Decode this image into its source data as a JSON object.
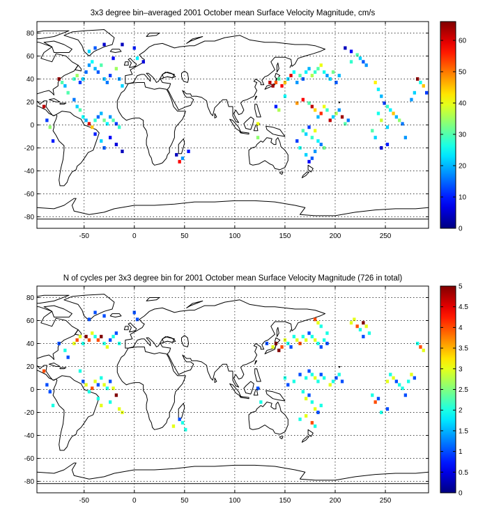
{
  "chart_data": [
    {
      "type": "heatmap",
      "title": "3x3 degree bin–averaged 2001 October mean Surface Velocity Magnitude, cm/s",
      "xlabel": "",
      "ylabel": "",
      "xlim": [
        -97,
        293
      ],
      "ylim": [
        -90,
        90
      ],
      "x_ticks": [
        -50,
        0,
        50,
        100,
        150,
        200,
        250
      ],
      "y_ticks": [
        -80,
        -60,
        -40,
        -20,
        0,
        20,
        40,
        60,
        80
      ],
      "grid": true,
      "colorbar": {
        "min": 0,
        "max": 66,
        "ticks": [
          0,
          10,
          20,
          30,
          40,
          50,
          60
        ],
        "tick_labels": [
          "0",
          "10",
          "20",
          "30",
          "40",
          "50",
          "60"
        ],
        "colormap": "jet"
      },
      "points": [
        [
          -75,
          40,
          65
        ],
        [
          -72,
          37,
          30
        ],
        [
          -69,
          34,
          20
        ],
        [
          -60,
          40,
          28
        ],
        [
          -57,
          43,
          35
        ],
        [
          -54,
          37,
          12
        ],
        [
          -51,
          40,
          22
        ],
        [
          -48,
          46,
          15
        ],
        [
          -45,
          52,
          18
        ],
        [
          -42,
          55,
          25
        ],
        [
          -39,
          49,
          20
        ],
        [
          -36,
          46,
          14
        ],
        [
          -33,
          52,
          30
        ],
        [
          -30,
          40,
          20
        ],
        [
          -27,
          37,
          16
        ],
        [
          -24,
          43,
          12
        ],
        [
          -21,
          58,
          8
        ],
        [
          -18,
          49,
          35
        ],
        [
          -15,
          40,
          18
        ],
        [
          -12,
          34,
          22
        ],
        [
          -45,
          64,
          22
        ],
        [
          -39,
          67,
          14
        ],
        [
          -30,
          70,
          5
        ],
        [
          -12,
          70,
          4
        ],
        [
          0,
          67,
          10
        ],
        [
          3,
          58,
          24
        ],
        [
          9,
          55,
          6
        ],
        [
          -66,
          28,
          30
        ],
        [
          -60,
          22,
          16
        ],
        [
          -57,
          16,
          22
        ],
        [
          -54,
          13,
          30
        ],
        [
          -51,
          7,
          25
        ],
        [
          -48,
          4,
          20
        ],
        [
          -45,
          1,
          60
        ],
        [
          -42,
          -2,
          45
        ],
        [
          -39,
          4,
          28
        ],
        [
          -36,
          7,
          15
        ],
        [
          -33,
          10,
          20
        ],
        [
          -30,
          4,
          32
        ],
        [
          -27,
          1,
          24
        ],
        [
          -24,
          7,
          18
        ],
        [
          -21,
          4,
          30
        ],
        [
          -18,
          1,
          12
        ],
        [
          -15,
          -2,
          28
        ],
        [
          -39,
          -8,
          10
        ],
        [
          -33,
          -14,
          22
        ],
        [
          -30,
          -20,
          14
        ],
        [
          -24,
          -11,
          8
        ],
        [
          -18,
          -17,
          6
        ],
        [
          -12,
          -23,
          4
        ],
        [
          -90,
          16,
          62
        ],
        [
          -87,
          4,
          12
        ],
        [
          -84,
          -2,
          34
        ],
        [
          -81,
          -14,
          10
        ],
        [
          42,
          -26,
          4
        ],
        [
          45,
          -32,
          58
        ],
        [
          48,
          -29,
          18
        ],
        [
          54,
          -23,
          9
        ],
        [
          123,
          -11,
          34
        ],
        [
          123,
          1,
          40
        ],
        [
          135,
          37,
          62
        ],
        [
          138,
          34,
          64
        ],
        [
          141,
          37,
          52
        ],
        [
          144,
          40,
          30
        ],
        [
          147,
          34,
          58
        ],
        [
          150,
          37,
          45
        ],
        [
          153,
          40,
          22
        ],
        [
          156,
          43,
          60
        ],
        [
          159,
          46,
          25
        ],
        [
          162,
          37,
          18
        ],
        [
          165,
          43,
          30
        ],
        [
          168,
          40,
          14
        ],
        [
          171,
          46,
          24
        ],
        [
          174,
          49,
          20
        ],
        [
          177,
          43,
          36
        ],
        [
          180,
          46,
          28
        ],
        [
          183,
          49,
          30
        ],
        [
          186,
          52,
          40
        ],
        [
          189,
          46,
          26
        ],
        [
          192,
          43,
          18
        ],
        [
          195,
          40,
          22
        ],
        [
          198,
          46,
          32
        ],
        [
          201,
          37,
          14
        ],
        [
          204,
          43,
          20
        ],
        [
          150,
          25,
          25
        ],
        [
          141,
          16,
          10
        ],
        [
          144,
          13,
          36
        ],
        [
          162,
          19,
          48
        ],
        [
          168,
          22,
          58
        ],
        [
          174,
          19,
          30
        ],
        [
          177,
          16,
          62
        ],
        [
          180,
          13,
          44
        ],
        [
          183,
          7,
          20
        ],
        [
          186,
          10,
          55
        ],
        [
          189,
          16,
          40
        ],
        [
          192,
          13,
          28
        ],
        [
          195,
          4,
          62
        ],
        [
          198,
          7,
          22
        ],
        [
          201,
          10,
          36
        ],
        [
          204,
          13,
          18
        ],
        [
          207,
          7,
          64
        ],
        [
          210,
          1,
          30
        ],
        [
          213,
          4,
          16
        ],
        [
          168,
          -5,
          30
        ],
        [
          171,
          -8,
          22
        ],
        [
          174,
          -2,
          12
        ],
        [
          177,
          -11,
          28
        ],
        [
          180,
          -5,
          40
        ],
        [
          183,
          -14,
          24
        ],
        [
          186,
          -17,
          16
        ],
        [
          189,
          -20,
          32
        ],
        [
          180,
          -23,
          18
        ],
        [
          177,
          -29,
          14
        ],
        [
          174,
          -32,
          8
        ],
        [
          171,
          -26,
          22
        ],
        [
          165,
          -20,
          26
        ],
        [
          162,
          -14,
          12
        ],
        [
          216,
          55,
          28
        ],
        [
          222,
          61,
          30
        ],
        [
          225,
          58,
          22
        ],
        [
          228,
          55,
          14
        ],
        [
          231,
          52,
          18
        ],
        [
          210,
          67,
          4
        ],
        [
          216,
          64,
          8
        ],
        [
          240,
          37,
          42
        ],
        [
          243,
          31,
          24
        ],
        [
          246,
          25,
          20
        ],
        [
          249,
          19,
          12
        ],
        [
          252,
          16,
          28
        ],
        [
          255,
          13,
          24
        ],
        [
          258,
          10,
          45
        ],
        [
          261,
          7,
          20
        ],
        [
          264,
          4,
          34
        ],
        [
          267,
          1,
          16
        ],
        [
          252,
          -2,
          22
        ],
        [
          246,
          4,
          38
        ],
        [
          243,
          10,
          26
        ],
        [
          237,
          -5,
          30
        ],
        [
          240,
          -11,
          22
        ],
        [
          246,
          -20,
          6
        ],
        [
          252,
          -17,
          10
        ],
        [
          270,
          -11,
          18
        ],
        [
          282,
          40,
          65
        ],
        [
          285,
          37,
          26
        ],
        [
          288,
          34,
          45
        ],
        [
          279,
          28,
          22
        ],
        [
          276,
          22,
          18
        ],
        [
          291,
          28,
          12
        ]
      ]
    },
    {
      "type": "heatmap",
      "title": "N of cycles per 3x3 degree bin for 2001 October mean Surface Velocity Magnitude (726 in total)",
      "xlabel": "",
      "ylabel": "",
      "xlim": [
        -97,
        293
      ],
      "ylim": [
        -90,
        90
      ],
      "x_ticks": [
        -50,
        0,
        50,
        100,
        150,
        200,
        250
      ],
      "y_ticks": [
        -80,
        -60,
        -40,
        -20,
        0,
        20,
        40,
        60,
        80
      ],
      "grid": true,
      "colorbar": {
        "min": 0,
        "max": 5,
        "ticks": [
          0,
          0.5,
          1,
          1.5,
          2,
          2.5,
          3,
          3.5,
          4,
          4.5,
          5
        ],
        "tick_labels": [
          "0",
          "0.5",
          "1",
          "1.5",
          "2",
          "2.5",
          "3",
          "3.5",
          "4",
          "4.5",
          "5"
        ],
        "colormap": "jet"
      },
      "points": [
        [
          -75,
          40,
          1
        ],
        [
          -69,
          34,
          2
        ],
        [
          -66,
          28,
          1
        ],
        [
          -60,
          40,
          3
        ],
        [
          -57,
          43,
          4
        ],
        [
          -54,
          46,
          3
        ],
        [
          -51,
          40,
          2
        ],
        [
          -48,
          46,
          5
        ],
        [
          -45,
          43,
          4
        ],
        [
          -42,
          49,
          3
        ],
        [
          -39,
          46,
          2
        ],
        [
          -36,
          43,
          4
        ],
        [
          -33,
          46,
          5
        ],
        [
          -30,
          40,
          2
        ],
        [
          -27,
          37,
          3
        ],
        [
          -24,
          43,
          1
        ],
        [
          -21,
          46,
          2
        ],
        [
          -18,
          49,
          1
        ],
        [
          -15,
          40,
          2
        ],
        [
          -45,
          61,
          1
        ],
        [
          -39,
          67,
          1
        ],
        [
          -30,
          64,
          1
        ],
        [
          0,
          67,
          1
        ],
        [
          3,
          61,
          1
        ],
        [
          -90,
          16,
          4
        ],
        [
          -87,
          4,
          1
        ],
        [
          -84,
          -2,
          1
        ],
        [
          -81,
          -14,
          2
        ],
        [
          -54,
          16,
          2
        ],
        [
          -51,
          7,
          1
        ],
        [
          -48,
          4,
          3
        ],
        [
          -45,
          -2,
          2
        ],
        [
          -42,
          1,
          4
        ],
        [
          -39,
          7,
          3
        ],
        [
          -36,
          4,
          1
        ],
        [
          -33,
          10,
          2
        ],
        [
          -30,
          4,
          3
        ],
        [
          -27,
          1,
          2
        ],
        [
          -24,
          7,
          1
        ],
        [
          -21,
          1,
          3
        ],
        [
          -18,
          -5,
          5
        ],
        [
          -36,
          -8,
          2
        ],
        [
          -33,
          -14,
          3
        ],
        [
          -24,
          -11,
          2
        ],
        [
          -15,
          -17,
          3
        ],
        [
          -12,
          -20,
          3
        ],
        [
          39,
          -32,
          3
        ],
        [
          45,
          -26,
          1
        ],
        [
          48,
          -29,
          2
        ],
        [
          51,
          -35,
          2
        ],
        [
          123,
          1,
          1
        ],
        [
          126,
          -11,
          2
        ],
        [
          132,
          40,
          1
        ],
        [
          138,
          37,
          3
        ],
        [
          141,
          40,
          5
        ],
        [
          144,
          34,
          5
        ],
        [
          147,
          37,
          4
        ],
        [
          150,
          43,
          3
        ],
        [
          153,
          40,
          2
        ],
        [
          156,
          37,
          1
        ],
        [
          159,
          46,
          2
        ],
        [
          162,
          43,
          3
        ],
        [
          165,
          40,
          4
        ],
        [
          168,
          46,
          2
        ],
        [
          171,
          43,
          3
        ],
        [
          174,
          49,
          1
        ],
        [
          177,
          46,
          2
        ],
        [
          180,
          43,
          3
        ],
        [
          183,
          40,
          2
        ],
        [
          186,
          37,
          1
        ],
        [
          189,
          43,
          2
        ],
        [
          192,
          40,
          1
        ],
        [
          180,
          61,
          4
        ],
        [
          183,
          58,
          3
        ],
        [
          186,
          55,
          2
        ],
        [
          192,
          49,
          2
        ],
        [
          150,
          10,
          2
        ],
        [
          153,
          4,
          1
        ],
        [
          159,
          7,
          2
        ],
        [
          165,
          13,
          1
        ],
        [
          171,
          10,
          2
        ],
        [
          174,
          16,
          1
        ],
        [
          177,
          13,
          2
        ],
        [
          180,
          10,
          3
        ],
        [
          183,
          7,
          2
        ],
        [
          186,
          13,
          1
        ],
        [
          189,
          10,
          2
        ],
        [
          195,
          4,
          3
        ],
        [
          198,
          7,
          2
        ],
        [
          201,
          10,
          1
        ],
        [
          204,
          13,
          2
        ],
        [
          207,
          7,
          1
        ],
        [
          168,
          -2,
          2
        ],
        [
          171,
          -8,
          3
        ],
        [
          174,
          -5,
          1
        ],
        [
          177,
          -11,
          2
        ],
        [
          180,
          -17,
          3
        ],
        [
          183,
          -20,
          1
        ],
        [
          186,
          -14,
          2
        ],
        [
          171,
          -23,
          3
        ],
        [
          165,
          -26,
          2
        ],
        [
          177,
          -29,
          4
        ],
        [
          180,
          -32,
          2
        ],
        [
          216,
          58,
          3
        ],
        [
          219,
          61,
          3
        ],
        [
          222,
          55,
          4
        ],
        [
          225,
          52,
          2
        ],
        [
          228,
          58,
          5
        ],
        [
          231,
          55,
          3
        ],
        [
          234,
          49,
          2
        ],
        [
          228,
          46,
          1
        ],
        [
          237,
          -5,
          2
        ],
        [
          240,
          -11,
          4
        ],
        [
          243,
          -8,
          1
        ],
        [
          246,
          -20,
          2
        ],
        [
          252,
          -17,
          1
        ],
        [
          255,
          13,
          2
        ],
        [
          258,
          10,
          3
        ],
        [
          261,
          7,
          1
        ],
        [
          264,
          4,
          2
        ],
        [
          267,
          1,
          2
        ],
        [
          270,
          -5,
          1
        ],
        [
          273,
          7,
          2
        ],
        [
          276,
          13,
          3
        ],
        [
          279,
          10,
          1
        ],
        [
          252,
          7,
          3
        ],
        [
          282,
          40,
          2
        ],
        [
          285,
          37,
          4
        ],
        [
          288,
          34,
          3
        ]
      ]
    }
  ]
}
